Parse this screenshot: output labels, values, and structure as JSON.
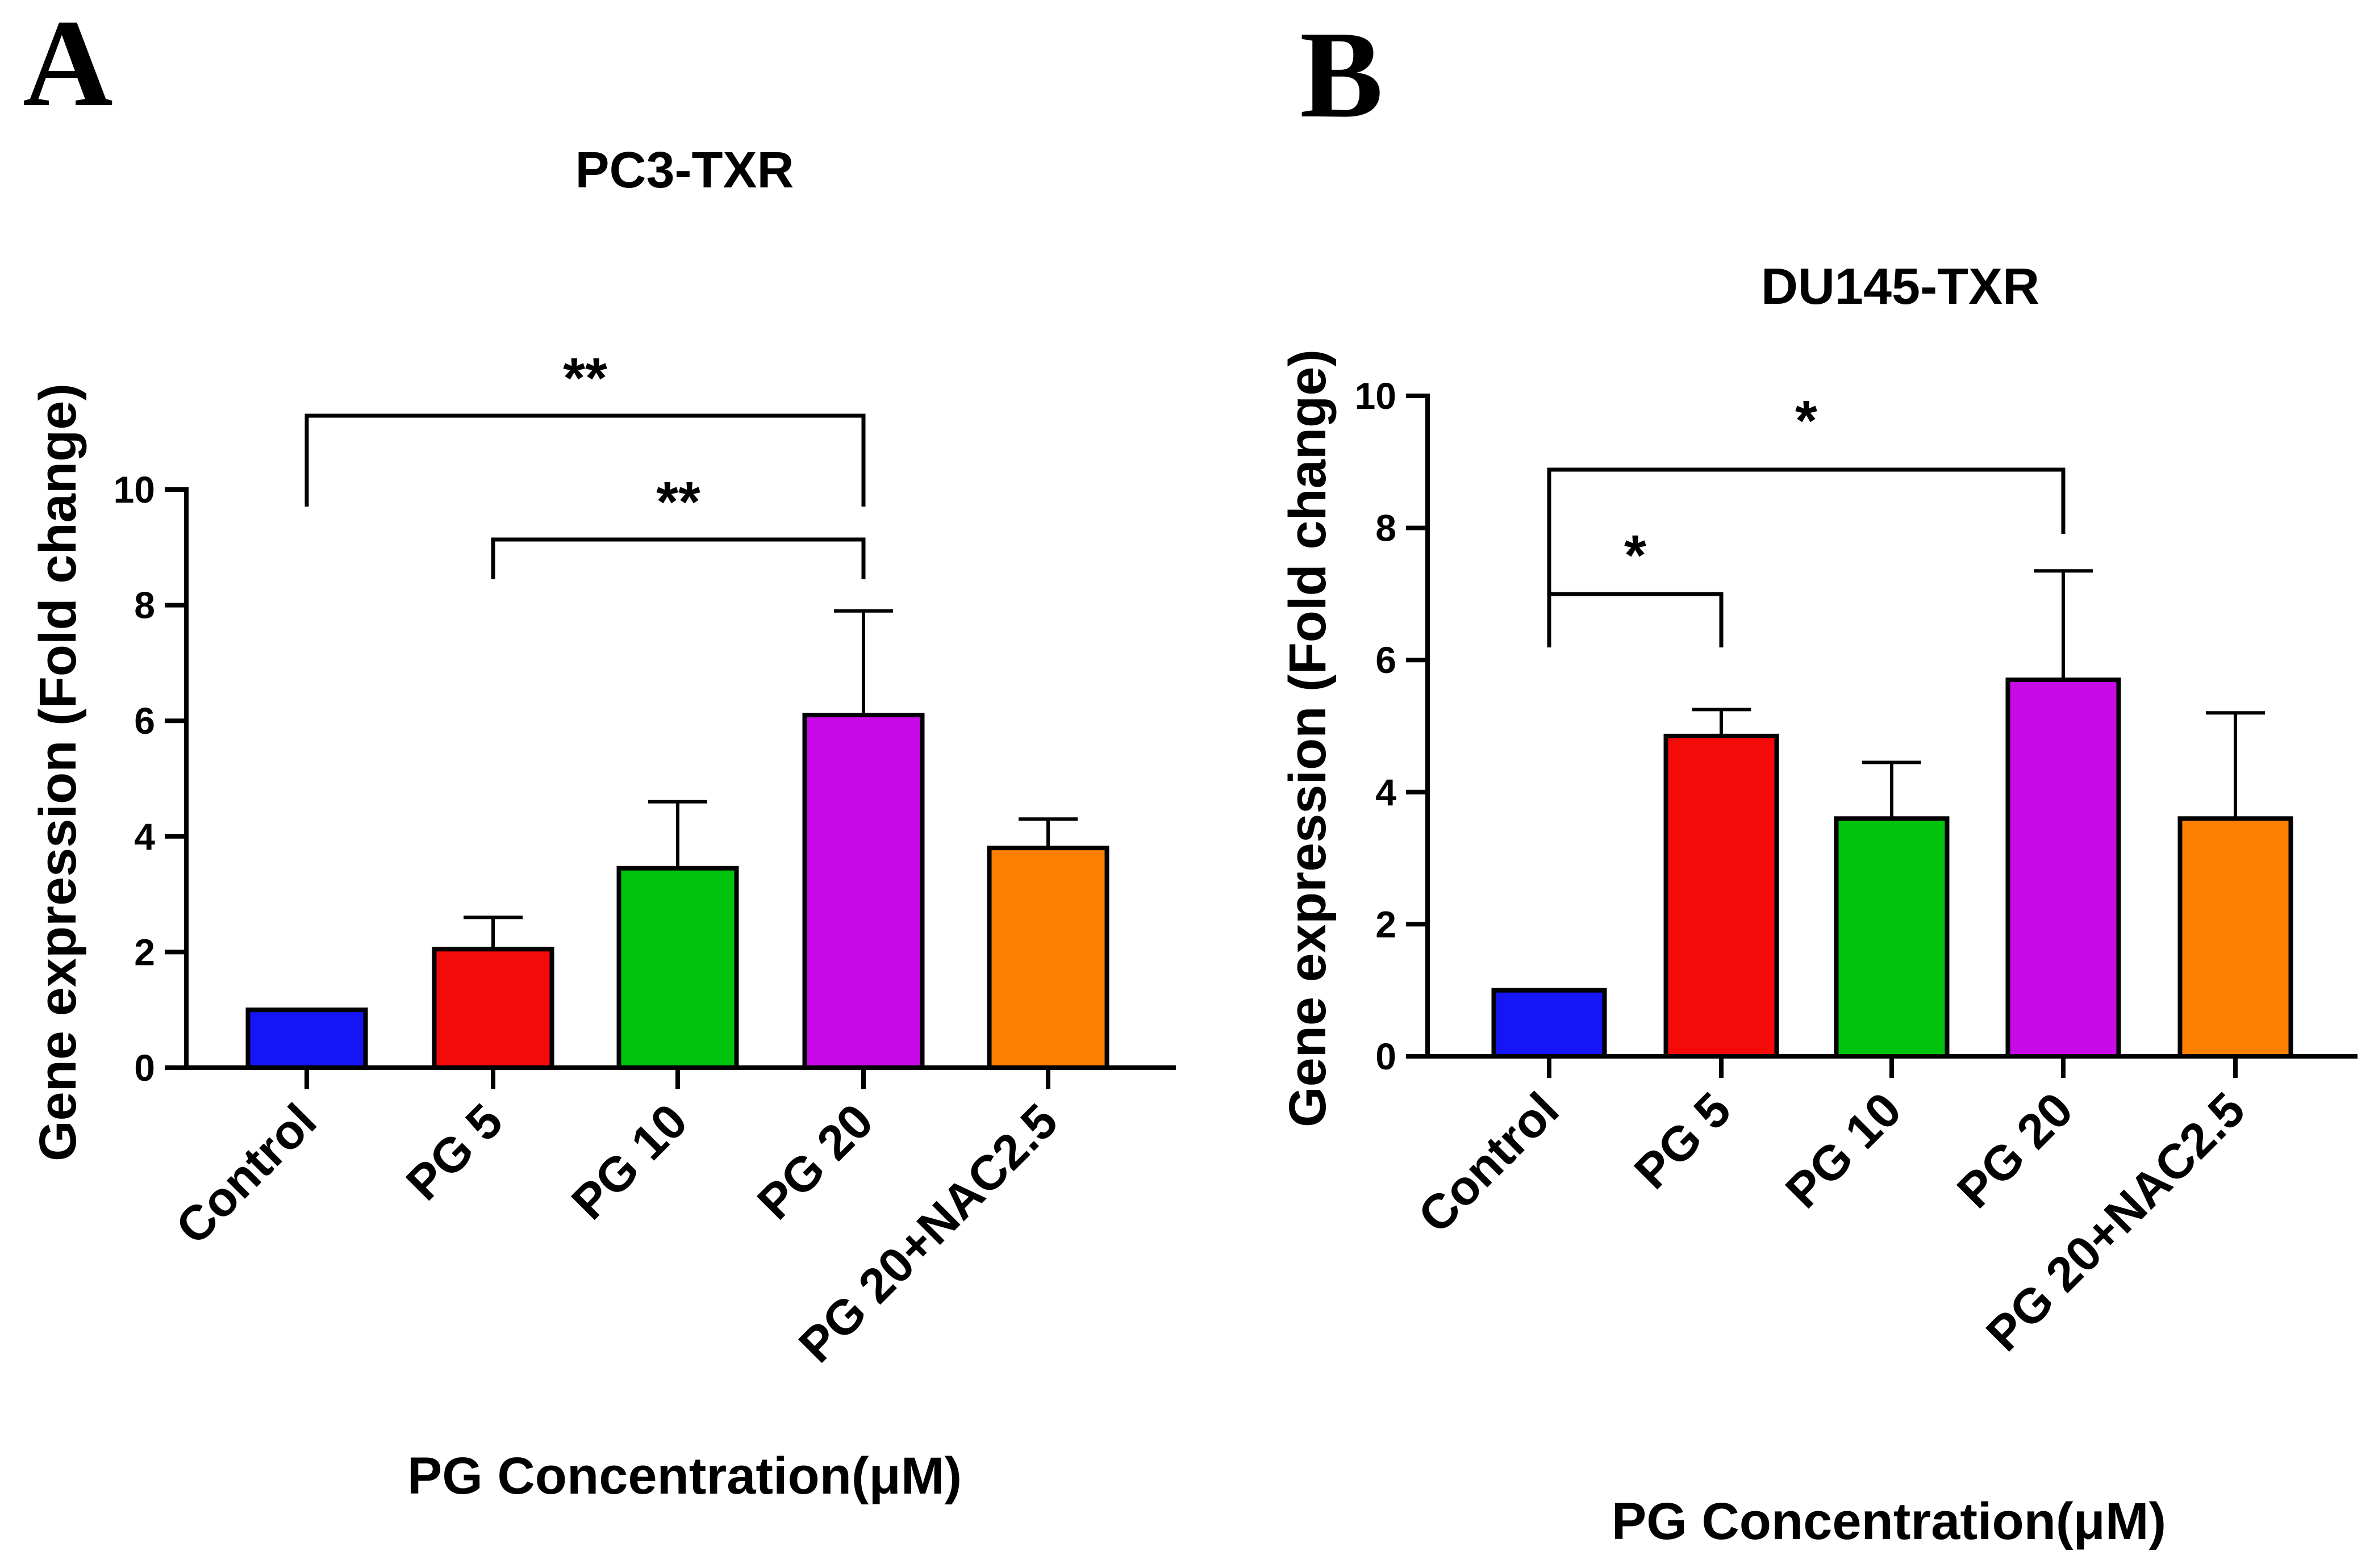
{
  "chart_data": [
    {
      "panel": "A",
      "type": "bar",
      "title": "PC3-TXR",
      "xlabel": "PG Concentration(μM)",
      "ylabel": "Gene expression (Fold change)",
      "ylim": [
        0,
        10
      ],
      "yticks": [
        "0",
        "2",
        "4",
        "6",
        "8",
        "10"
      ],
      "categories": [
        "Control",
        "PG 5",
        "PG 10",
        "PG 20",
        "PG 20+NAC2.5"
      ],
      "values": [
        1.0,
        2.05,
        3.45,
        6.1,
        3.8
      ],
      "errors": [
        0,
        0.55,
        1.15,
        1.8,
        0.5
      ],
      "colors": [
        "#1515f5",
        "#f50a0a",
        "#00c40c",
        "#c80ae6",
        "#ff8000"
      ],
      "significance": [
        {
          "from": 0,
          "to": 3,
          "label": "**"
        },
        {
          "from": 1,
          "to": 3,
          "label": "**"
        }
      ]
    },
    {
      "panel": "B",
      "type": "bar",
      "title": "DU145-TXR",
      "xlabel": "PG Concentration(μM)",
      "ylabel": "Gene expression (Fold change)",
      "ylim": [
        0,
        10
      ],
      "yticks": [
        "0",
        "2",
        "4",
        "6",
        "8",
        "10"
      ],
      "categories": [
        "Control",
        "PG 5",
        "PG 10",
        "PG 20",
        "PG 20+NAC2.5"
      ],
      "values": [
        1.0,
        4.85,
        3.6,
        5.7,
        3.6
      ],
      "errors": [
        0,
        0.4,
        0.85,
        1.65,
        1.6
      ],
      "colors": [
        "#1515f5",
        "#f50a0a",
        "#00c40c",
        "#c80ae6",
        "#ff8000"
      ],
      "significance": [
        {
          "from": 0,
          "to": 1,
          "label": "*"
        },
        {
          "from": 0,
          "to": 3,
          "label": "*"
        }
      ]
    }
  ]
}
